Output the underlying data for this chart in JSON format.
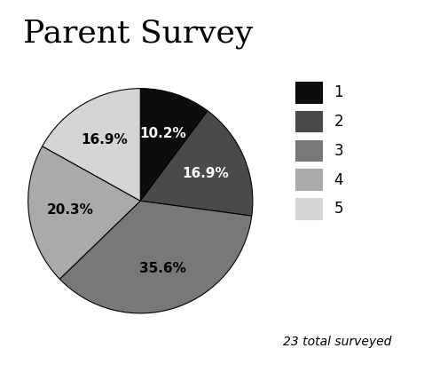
{
  "title": "Parent Survey",
  "slices": [
    10.2,
    16.9,
    35.6,
    20.3,
    16.9
  ],
  "labels": [
    "10.2%",
    "16.9%",
    "35.6%",
    "20.3%",
    "16.9%"
  ],
  "colors": [
    "#0d0d0d",
    "#4a4a4a",
    "#787878",
    "#aaaaaa",
    "#d5d5d5"
  ],
  "legend_labels": [
    "1",
    "2",
    "3",
    "4",
    "5"
  ],
  "startangle": 90,
  "note": "23 total surveyed",
  "title_fontsize": 26,
  "label_fontsize": 11,
  "legend_fontsize": 12
}
